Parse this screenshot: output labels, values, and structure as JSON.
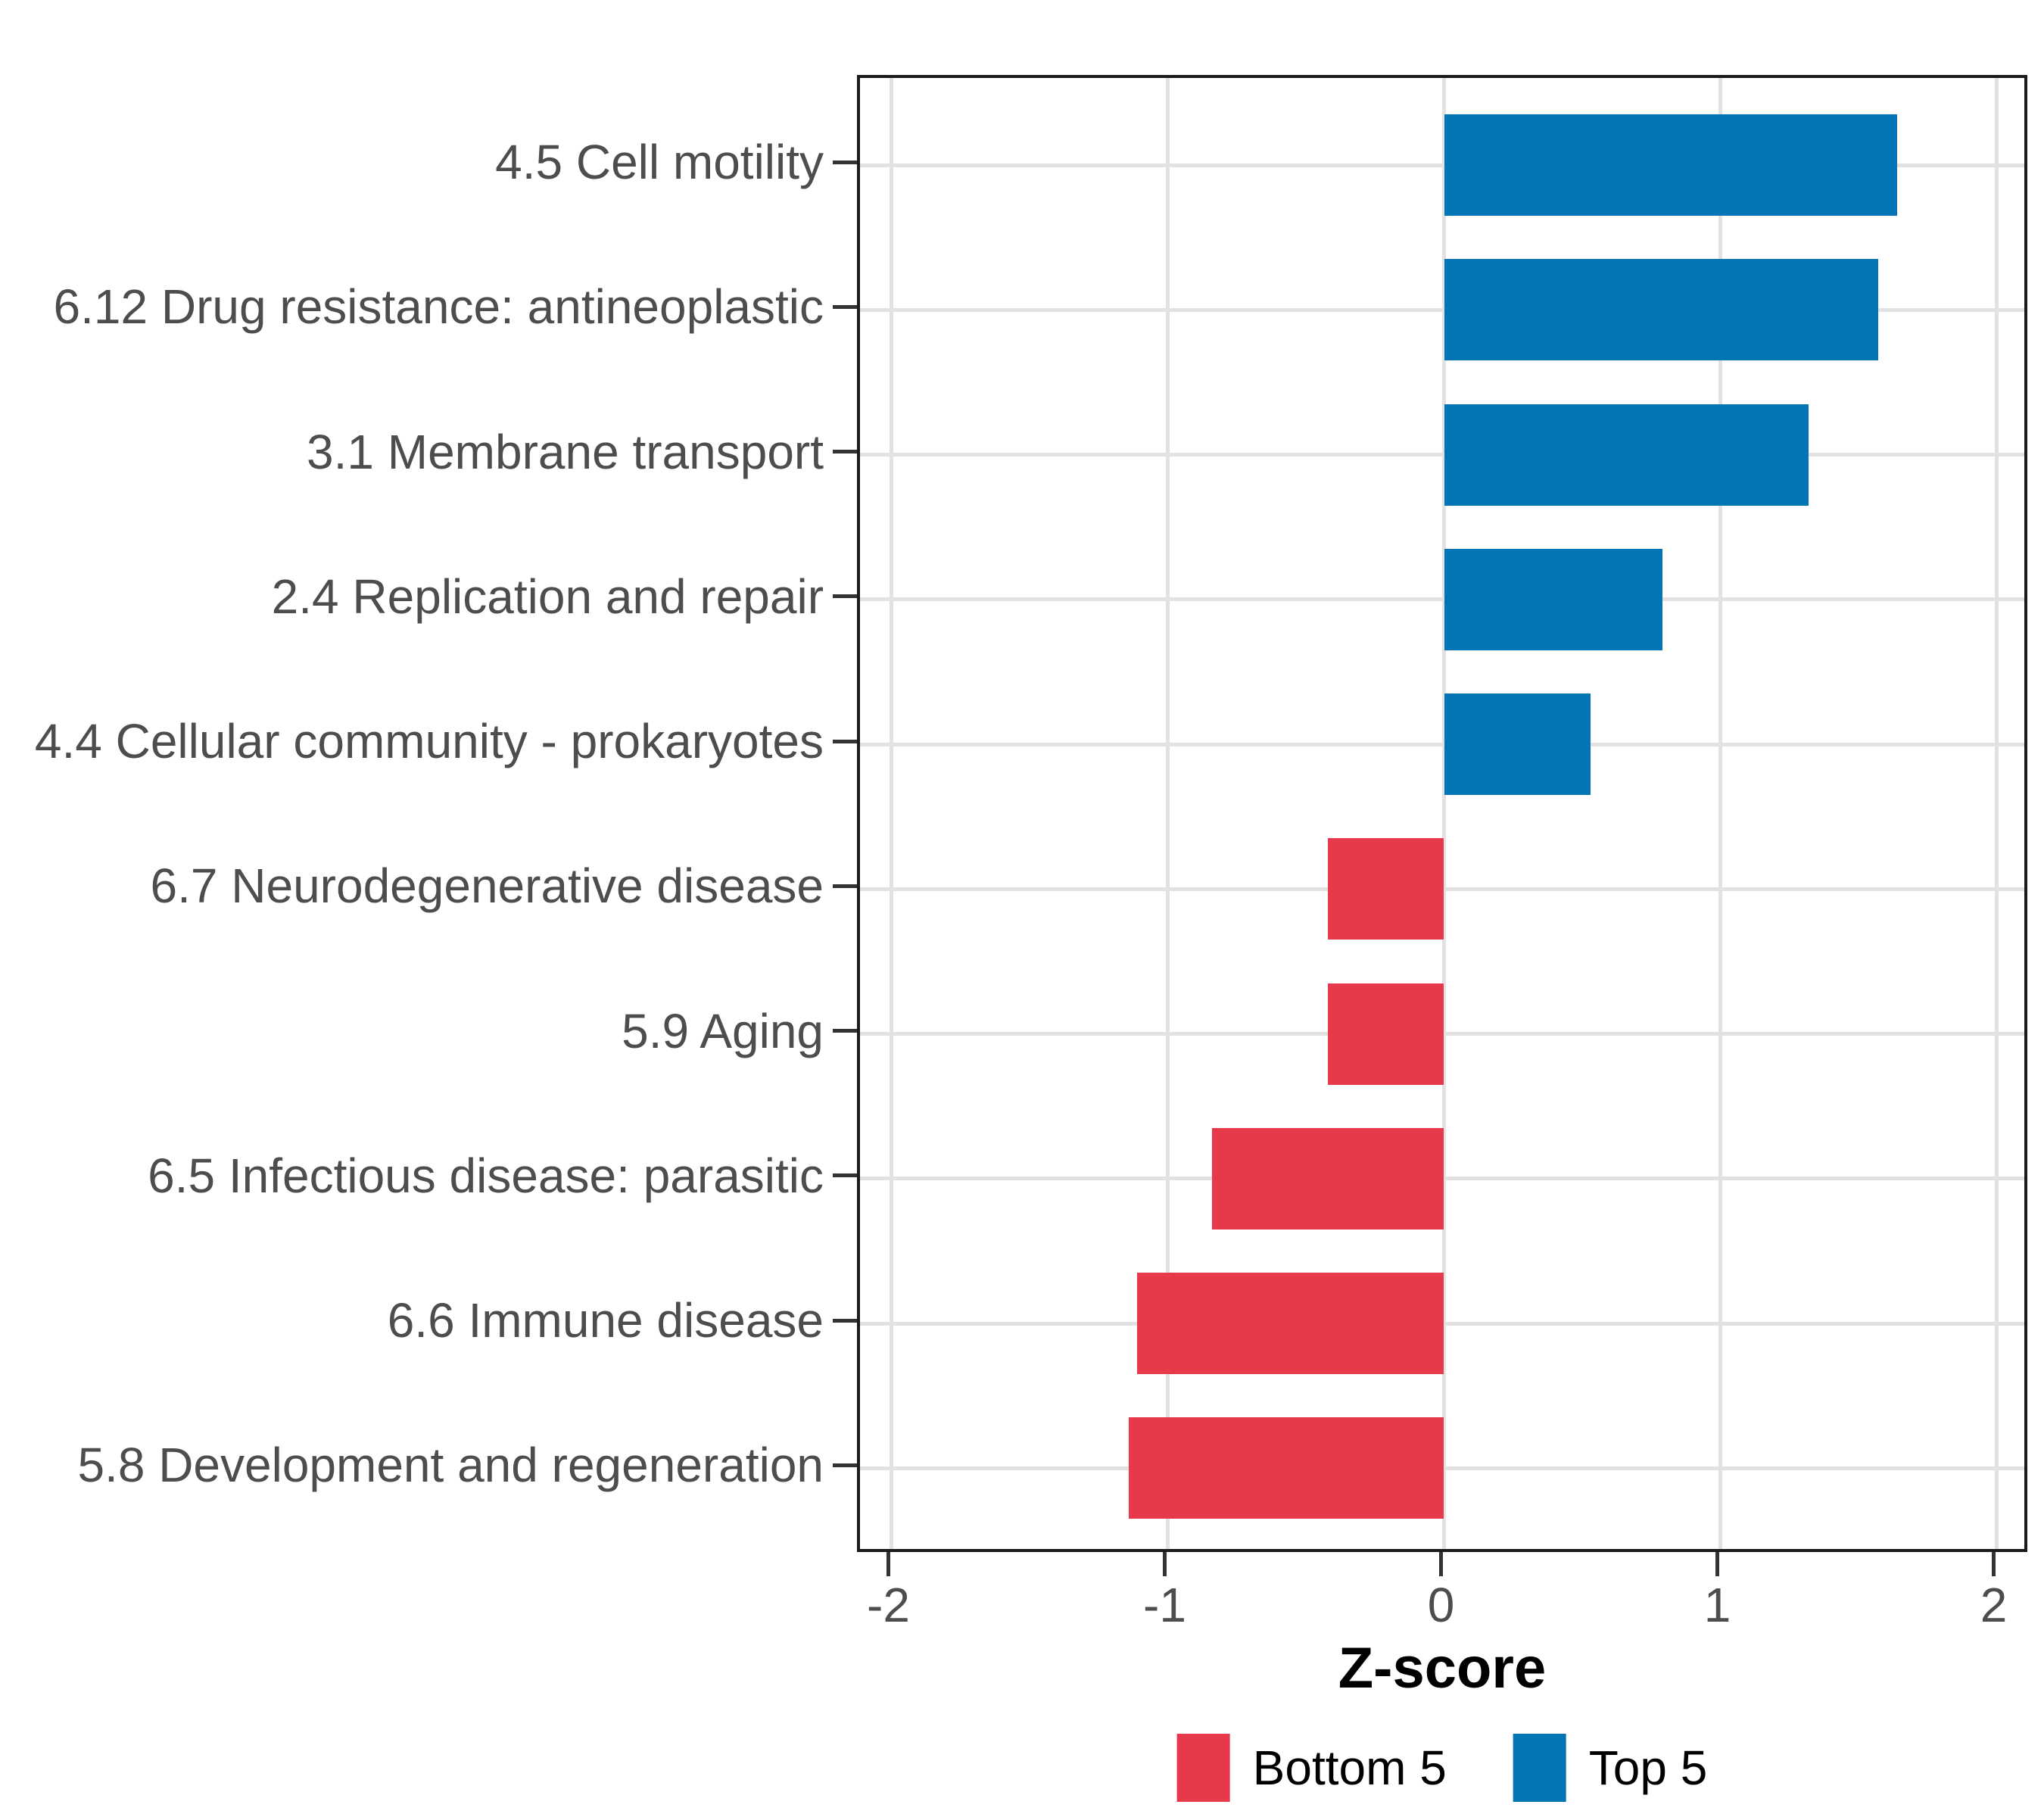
{
  "figure": {
    "background": "#ffffff",
    "colors": {
      "top5": "#0374b5",
      "bottom5": "#e8394a",
      "grid": "#e2e2e2",
      "panel_border": "#1b1b1b",
      "tick_mark": "#333333",
      "axis_text": "#4d4d4d",
      "axis_title_text": "#000000"
    }
  },
  "chart_data": {
    "type": "bar",
    "orientation": "horizontal",
    "title": "",
    "xlabel": "Z-score",
    "ylabel": "",
    "xlim": [
      -2.12,
      2.12
    ],
    "xticks": [
      -2,
      -1,
      0,
      1,
      2
    ],
    "xtick_labels": [
      "-2",
      "-1",
      "0",
      "1",
      "2"
    ],
    "grid": "major-only",
    "legend_position": "bottom-center",
    "bars": [
      {
        "label": "4.5 Cell motility",
        "value": 1.64,
        "group": "Top 5"
      },
      {
        "label": "6.12 Drug resistance: antineoplastic",
        "value": 1.57,
        "group": "Top 5"
      },
      {
        "label": "3.1 Membrane transport",
        "value": 1.32,
        "group": "Top 5"
      },
      {
        "label": "2.4 Replication and repair",
        "value": 0.79,
        "group": "Top 5"
      },
      {
        "label": "4.4 Cellular community - prokaryotes",
        "value": 0.53,
        "group": "Top 5"
      },
      {
        "label": "6.7 Neurodegenerative disease",
        "value": -0.42,
        "group": "Bottom 5"
      },
      {
        "label": "5.9 Aging",
        "value": -0.42,
        "group": "Bottom 5"
      },
      {
        "label": "6.5 Infectious disease: parasitic",
        "value": -0.84,
        "group": "Bottom 5"
      },
      {
        "label": "6.6 Immune disease",
        "value": -1.11,
        "group": "Bottom 5"
      },
      {
        "label": "5.8 Development and regeneration",
        "value": -1.14,
        "group": "Bottom 5"
      }
    ],
    "legend": [
      {
        "label": "Bottom 5",
        "color_key": "bottom5"
      },
      {
        "label": "Top 5",
        "color_key": "top5"
      }
    ]
  }
}
